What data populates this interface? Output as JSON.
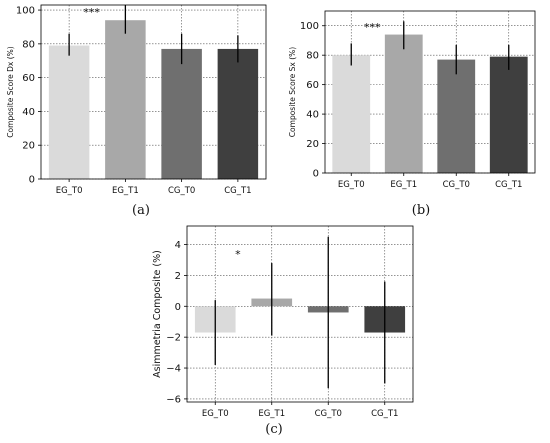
{
  "chart_data": [
    {
      "type": "bar",
      "panel_label": "(a)",
      "categories": [
        "EG_T0",
        "EG_T1",
        "CG_T0",
        "CG_T1"
      ],
      "values": [
        79,
        94,
        77,
        77
      ],
      "error_low": [
        73,
        86,
        68,
        69
      ],
      "error_high": [
        86,
        103,
        86,
        85
      ],
      "colors": [
        "#dadada",
        "#a8a8a8",
        "#6f6f6f",
        "#3f3f3f"
      ],
      "ylabel": "Composite Score Dx (%)",
      "xlabel": "",
      "ylim": [
        0,
        103
      ],
      "yticks": [
        "0",
        "20",
        "40",
        "60",
        "80",
        "100"
      ],
      "grid": true,
      "annotations": [
        {
          "text": "***",
          "category": "EG_T0",
          "y": 99
        }
      ]
    },
    {
      "type": "bar",
      "panel_label": "(b)",
      "categories": [
        "EG_T0",
        "EG_T1",
        "CG_T0",
        "CG_T1"
      ],
      "values": [
        80,
        94,
        77,
        79
      ],
      "error_low": [
        73,
        84,
        67,
        70
      ],
      "error_high": [
        88,
        103,
        87,
        87
      ],
      "colors": [
        "#dadada",
        "#a8a8a8",
        "#6f6f6f",
        "#3f3f3f"
      ],
      "ylabel": "Composite Score Sx (%)",
      "xlabel": "",
      "ylim": [
        0,
        110
      ],
      "yticks": [
        "0",
        "20",
        "40",
        "60",
        "80",
        "100"
      ],
      "grid": true,
      "annotations": [
        {
          "text": "***",
          "category": "EG_T0",
          "y": 99
        }
      ]
    },
    {
      "type": "bar",
      "panel_label": "(c)",
      "categories": [
        "EG_T0",
        "EG_T1",
        "CG_T0",
        "CG_T1"
      ],
      "values": [
        -1.7,
        0.5,
        -0.4,
        -1.7
      ],
      "error_low": [
        -3.8,
        -1.9,
        -5.3,
        -5.0
      ],
      "error_high": [
        0.4,
        2.8,
        4.5,
        1.6
      ],
      "colors": [
        "#dadada",
        "#a8a8a8",
        "#6f6f6f",
        "#3f3f3f"
      ],
      "ylabel": "Asimmetria Composite (%)",
      "xlabel": "",
      "ylim": [
        -6.2,
        5.2
      ],
      "yticks": [
        "−6",
        "−4",
        "−2",
        "0",
        "2",
        "4"
      ],
      "grid": true,
      "annotations": [
        {
          "text": "*",
          "category": "EG_T0",
          "y": 3.4
        }
      ]
    }
  ]
}
